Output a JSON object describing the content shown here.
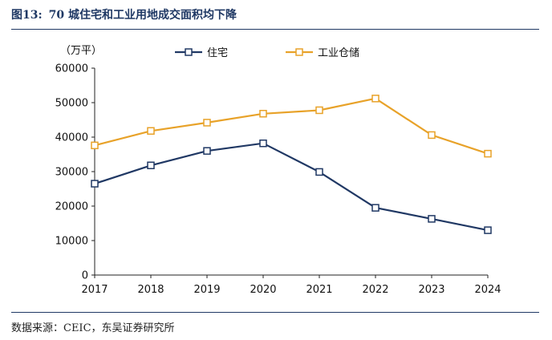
{
  "figure": {
    "number": "图13:",
    "title": "70 城住宅和工业用地成交面积均下降",
    "source": "数据来源：CEIC，东吴证券研究所"
  },
  "chart_data": {
    "type": "line",
    "title": "70 城住宅和工业用地成交面积均下降",
    "ylabel": "（万平）",
    "xlabel": "",
    "x": [
      "2017",
      "2018",
      "2019",
      "2020",
      "2021",
      "2022",
      "2023",
      "2024"
    ],
    "ylim": [
      0,
      60000
    ],
    "yticks": [
      0,
      10000,
      20000,
      30000,
      40000,
      50000,
      60000
    ],
    "grid": false,
    "legend_position": "top",
    "series": [
      {
        "name": "住宅",
        "color": "#203864",
        "marker": "square-open",
        "values": [
          26500,
          31800,
          36000,
          38200,
          29900,
          19500,
          16300,
          13000
        ]
      },
      {
        "name": "工业仓储",
        "color": "#E8A229",
        "marker": "square-open",
        "values": [
          37600,
          41800,
          44200,
          46800,
          47800,
          51200,
          40600,
          35200
        ]
      }
    ]
  }
}
